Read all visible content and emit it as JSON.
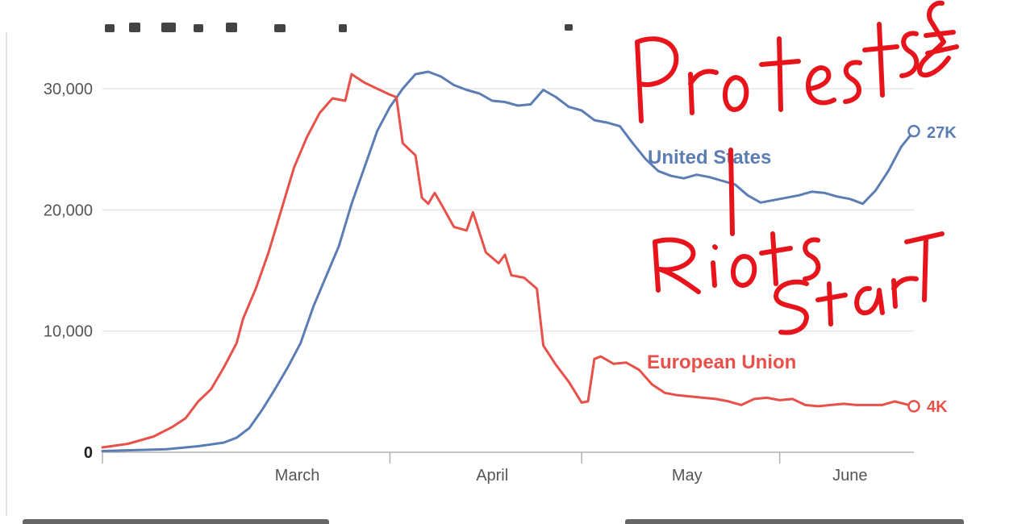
{
  "colors": {
    "us": "#5b7db3",
    "eu": "#e8504a",
    "annotation": "#e8141c",
    "grid": "#e6e6e6"
  },
  "chart_data": {
    "type": "line",
    "title": "",
    "xlabel": "",
    "ylabel": "",
    "x_ticks": [
      "March",
      "April",
      "May",
      "June"
    ],
    "y_ticks": [
      {
        "value": 0,
        "label": "0"
      },
      {
        "value": 10000,
        "label": "10,000"
      },
      {
        "value": 20000,
        "label": "20,000"
      },
      {
        "value": 30000,
        "label": "30,000"
      }
    ],
    "ylim": [
      0,
      33000
    ],
    "x_range": [
      "2020-02-15",
      "2020-06-21"
    ],
    "grid": true,
    "series": [
      {
        "name": "United States",
        "key": "us",
        "end_label": "27K",
        "points": [
          [
            "2020-02-15",
            100
          ],
          [
            "2020-02-25",
            250
          ],
          [
            "2020-03-01",
            500
          ],
          [
            "2020-03-05",
            800
          ],
          [
            "2020-03-07",
            1200
          ],
          [
            "2020-03-09",
            2000
          ],
          [
            "2020-03-11",
            3500
          ],
          [
            "2020-03-13",
            5200
          ],
          [
            "2020-03-15",
            7000
          ],
          [
            "2020-03-17",
            9000
          ],
          [
            "2020-03-19",
            12000
          ],
          [
            "2020-03-21",
            14500
          ],
          [
            "2020-03-23",
            17000
          ],
          [
            "2020-03-25",
            20500
          ],
          [
            "2020-03-27",
            23500
          ],
          [
            "2020-03-29",
            26500
          ],
          [
            "2020-03-31",
            28500
          ],
          [
            "2020-04-02",
            30000
          ],
          [
            "2020-04-04",
            31200
          ],
          [
            "2020-04-06",
            31400
          ],
          [
            "2020-04-08",
            31000
          ],
          [
            "2020-04-10",
            30300
          ],
          [
            "2020-04-12",
            29900
          ],
          [
            "2020-04-14",
            29600
          ],
          [
            "2020-04-16",
            29000
          ],
          [
            "2020-04-18",
            28900
          ],
          [
            "2020-04-20",
            28600
          ],
          [
            "2020-04-22",
            28700
          ],
          [
            "2020-04-24",
            29900
          ],
          [
            "2020-04-26",
            29300
          ],
          [
            "2020-04-28",
            28500
          ],
          [
            "2020-04-30",
            28200
          ],
          [
            "2020-05-02",
            27400
          ],
          [
            "2020-05-04",
            27200
          ],
          [
            "2020-05-06",
            26900
          ],
          [
            "2020-05-08",
            25500
          ],
          [
            "2020-05-10",
            24200
          ],
          [
            "2020-05-12",
            23200
          ],
          [
            "2020-05-14",
            22800
          ],
          [
            "2020-05-16",
            22600
          ],
          [
            "2020-05-18",
            22900
          ],
          [
            "2020-05-20",
            22700
          ],
          [
            "2020-05-22",
            22400
          ],
          [
            "2020-05-24",
            22100
          ],
          [
            "2020-05-26",
            21200
          ],
          [
            "2020-05-28",
            20600
          ],
          [
            "2020-05-30",
            20800
          ],
          [
            "2020-06-01",
            21000
          ],
          [
            "2020-06-03",
            21200
          ],
          [
            "2020-06-05",
            21500
          ],
          [
            "2020-06-07",
            21400
          ],
          [
            "2020-06-09",
            21100
          ],
          [
            "2020-06-11",
            20900
          ],
          [
            "2020-06-13",
            20500
          ],
          [
            "2020-06-15",
            21600
          ],
          [
            "2020-06-17",
            23200
          ],
          [
            "2020-06-19",
            25200
          ],
          [
            "2020-06-21",
            26500
          ]
        ]
      },
      {
        "name": "European Union",
        "key": "eu",
        "end_label": "4K",
        "points": [
          [
            "2020-02-15",
            400
          ],
          [
            "2020-02-19",
            700
          ],
          [
            "2020-02-23",
            1300
          ],
          [
            "2020-02-26",
            2100
          ],
          [
            "2020-02-28",
            2800
          ],
          [
            "2020-03-01",
            4200
          ],
          [
            "2020-03-03",
            5200
          ],
          [
            "2020-03-05",
            7000
          ],
          [
            "2020-03-07",
            9000
          ],
          [
            "2020-03-08",
            11000
          ],
          [
            "2020-03-10",
            13500
          ],
          [
            "2020-03-12",
            16500
          ],
          [
            "2020-03-14",
            20000
          ],
          [
            "2020-03-16",
            23500
          ],
          [
            "2020-03-18",
            26000
          ],
          [
            "2020-03-20",
            28000
          ],
          [
            "2020-03-22",
            29200
          ],
          [
            "2020-03-24",
            29000
          ],
          [
            "2020-03-25",
            31200
          ],
          [
            "2020-03-27",
            30500
          ],
          [
            "2020-03-29",
            30000
          ],
          [
            "2020-03-31",
            29500
          ],
          [
            "2020-04-01",
            29300
          ],
          [
            "2020-04-02",
            25500
          ],
          [
            "2020-04-04",
            24500
          ],
          [
            "2020-04-05",
            21000
          ],
          [
            "2020-04-06",
            20500
          ],
          [
            "2020-04-07",
            21400
          ],
          [
            "2020-04-08",
            20500
          ],
          [
            "2020-04-10",
            18600
          ],
          [
            "2020-04-12",
            18300
          ],
          [
            "2020-04-13",
            19800
          ],
          [
            "2020-04-15",
            16500
          ],
          [
            "2020-04-17",
            15600
          ],
          [
            "2020-04-18",
            16300
          ],
          [
            "2020-04-19",
            14600
          ],
          [
            "2020-04-21",
            14400
          ],
          [
            "2020-04-23",
            13500
          ],
          [
            "2020-04-24",
            8800
          ],
          [
            "2020-04-26",
            7200
          ],
          [
            "2020-04-28",
            5800
          ],
          [
            "2020-04-30",
            4100
          ],
          [
            "2020-05-01",
            4200
          ],
          [
            "2020-05-02",
            7700
          ],
          [
            "2020-05-03",
            7900
          ],
          [
            "2020-05-05",
            7300
          ],
          [
            "2020-05-07",
            7400
          ],
          [
            "2020-05-09",
            6800
          ],
          [
            "2020-05-11",
            5600
          ],
          [
            "2020-05-13",
            4900
          ],
          [
            "2020-05-15",
            4700
          ],
          [
            "2020-05-17",
            4600
          ],
          [
            "2020-05-19",
            4500
          ],
          [
            "2020-05-21",
            4400
          ],
          [
            "2020-05-23",
            4200
          ],
          [
            "2020-05-25",
            3900
          ],
          [
            "2020-05-27",
            4400
          ],
          [
            "2020-05-29",
            4500
          ],
          [
            "2020-05-31",
            4300
          ],
          [
            "2020-06-02",
            4400
          ],
          [
            "2020-06-04",
            3900
          ],
          [
            "2020-06-06",
            3800
          ],
          [
            "2020-06-08",
            3900
          ],
          [
            "2020-06-10",
            4000
          ],
          [
            "2020-06-12",
            3900
          ],
          [
            "2020-06-14",
            3900
          ],
          [
            "2020-06-16",
            3900
          ],
          [
            "2020-06-18",
            4200
          ],
          [
            "2020-06-21",
            3800
          ]
        ]
      }
    ],
    "annotations": [
      {
        "name": "handwritten-protests-and",
        "text": "Protests &"
      },
      {
        "name": "handwritten-riots",
        "text": "Riots"
      },
      {
        "name": "handwritten-start",
        "text": "Start"
      }
    ]
  }
}
